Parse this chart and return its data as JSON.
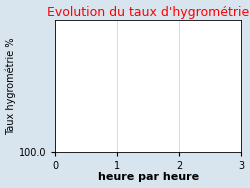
{
  "title": "Evolution du taux d'hygrométrie",
  "title_color": "#ff0000",
  "xlabel": "heure par heure",
  "ylabel": "Taux hygrométrie %",
  "background_color": "#d8e4ee",
  "plot_bg_color": "#ffffff",
  "xlim": [
    0,
    3
  ],
  "ylim_bottom_label": "100.0",
  "xticks": [
    0,
    1,
    2,
    3
  ],
  "grid_color": "#cccccc",
  "title_fontsize": 9,
  "xlabel_fontsize": 8,
  "ylabel_fontsize": 7,
  "tick_fontsize": 7,
  "xlabel_fontweight": "bold"
}
